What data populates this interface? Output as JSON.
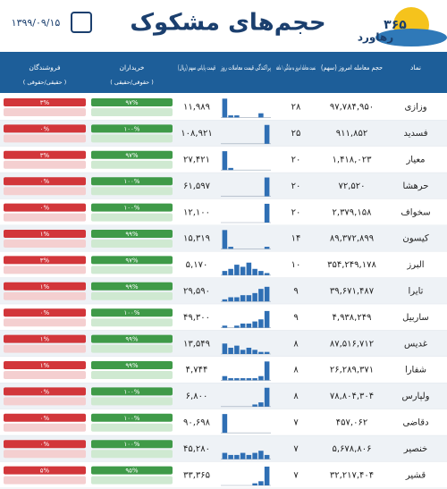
{
  "header": {
    "title": "حجم‌های مشکوک",
    "date": "۱۳۹۹/۰۹/۱۵",
    "logo_number": "۳۶۵",
    "logo_text": "رهاورد"
  },
  "table": {
    "columns": [
      "نماد",
      "حجم معامله امروز (سهم)",
      "نسبت معامله امروز به میانگین ۱ ماهه",
      "پراکندگی قیمت معاملات روز",
      "قیمت پایانی سهم (ریال)",
      "خریداران",
      "فروشندگان"
    ],
    "column_notes": {
      "buyers": "( حقوقی/حقیقی )",
      "sellers": "( حقیقی/حقوقی )"
    },
    "rows": [
      {
        "symbol": "وزازی",
        "volume": "۹۷,۷۸۴,۹۵۰",
        "ratio": "۲۸",
        "price": "۱۱,۹۸۹",
        "buyers": "۹۷%",
        "sellers": "۳%",
        "dist": [
          9,
          1,
          1,
          0,
          0,
          0,
          2,
          0
        ]
      },
      {
        "symbol": "فسدید",
        "volume": "۹۱۱,۸۵۲",
        "ratio": "۲۵",
        "price": "۱۰۸,۹۲۱",
        "buyers": "۱۰۰%",
        "sellers": "۰%",
        "dist": [
          0,
          0,
          0,
          0,
          0,
          0,
          0,
          9
        ]
      },
      {
        "symbol": "معیار",
        "volume": "۱,۴۱۸,۰۲۳",
        "ratio": "۲۰",
        "price": "۲۷,۴۲۱",
        "buyers": "۹۷%",
        "sellers": "۳%",
        "dist": [
          9,
          1,
          0,
          0,
          0,
          0,
          0,
          0
        ]
      },
      {
        "symbol": "حرهشا",
        "volume": "۷۲,۵۲۰",
        "ratio": "۲۰",
        "price": "۶۱,۵۹۷",
        "buyers": "۱۰۰%",
        "sellers": "۰%",
        "dist": [
          0,
          0,
          0,
          0,
          0,
          0,
          0,
          9
        ]
      },
      {
        "symbol": "سخواف",
        "volume": "۲,۳۷۹,۱۵۸",
        "ratio": "۲۰",
        "price": "۱۲,۱۰۰",
        "buyers": "۱۰۰%",
        "sellers": "۰%",
        "dist": [
          0,
          0,
          0,
          0,
          0,
          0,
          0,
          9
        ]
      },
      {
        "symbol": "کیسون",
        "volume": "۸۹,۳۷۲,۸۹۹",
        "ratio": "۱۴",
        "price": "۱۵,۳۱۹",
        "buyers": "۹۹%",
        "sellers": "۱%",
        "dist": [
          9,
          1,
          0,
          0,
          0,
          0,
          0,
          1
        ]
      },
      {
        "symbol": "البرز",
        "volume": "۳۵۴,۲۴۹,۱۷۸",
        "ratio": "۱۰",
        "price": "۵,۱۷۰",
        "buyers": "۹۷%",
        "sellers": "۳%",
        "dist": [
          2,
          3,
          5,
          4,
          6,
          3,
          2,
          1
        ]
      },
      {
        "symbol": "تایرا",
        "volume": "۳۹,۶۷۱,۴۸۷",
        "ratio": "۹",
        "price": "۲۹,۵۹۰",
        "buyers": "۹۹%",
        "sellers": "۱%",
        "dist": [
          1,
          2,
          2,
          3,
          3,
          4,
          6,
          7
        ]
      },
      {
        "symbol": "ساربیل",
        "volume": "۴,۹۳۸,۲۴۹",
        "ratio": "۹",
        "price": "۴۹,۳۰۰",
        "buyers": "۱۰۰%",
        "sellers": "۰%",
        "dist": [
          1,
          0,
          1,
          2,
          2,
          3,
          4,
          8
        ]
      },
      {
        "symbol": "غدیس",
        "volume": "۸۷,۵۱۶,۷۱۲",
        "ratio": "۸",
        "price": "۱۳,۵۴۹",
        "buyers": "۹۹%",
        "sellers": "۱%",
        "dist": [
          5,
          3,
          4,
          2,
          3,
          2,
          1,
          1
        ]
      },
      {
        "symbol": "شفارا",
        "volume": "۲۶,۲۸۹,۳۷۱",
        "ratio": "۸",
        "price": "۴,۷۴۴",
        "buyers": "۹۹%",
        "sellers": "۱%",
        "dist": [
          2,
          1,
          1,
          1,
          1,
          1,
          2,
          9
        ]
      },
      {
        "symbol": "ولپارس",
        "volume": "۷۸,۸۰۴,۳۰۴",
        "ratio": "۸",
        "price": "۶,۸۰۰",
        "buyers": "۱۰۰%",
        "sellers": "۰%",
        "dist": [
          0,
          0,
          0,
          0,
          0,
          1,
          2,
          9
        ]
      },
      {
        "symbol": "دقاضی",
        "volume": "۴۵۷,۰۶۲",
        "ratio": "۷",
        "price": "۹۰,۶۹۸",
        "buyers": "۱۰۰%",
        "sellers": "۰%",
        "dist": [
          9,
          0,
          0,
          0,
          0,
          0,
          0,
          0
        ]
      },
      {
        "symbol": "خنصیر",
        "volume": "۵,۶۷۸,۸۰۶",
        "ratio": "۷",
        "price": "۴۵,۲۸۰",
        "buyers": "۱۰۰%",
        "sellers": "۰%",
        "dist": [
          3,
          2,
          2,
          3,
          2,
          3,
          4,
          2
        ]
      },
      {
        "symbol": "قشیر",
        "volume": "۳۲,۲۱۷,۴۰۴",
        "ratio": "۷",
        "price": "۳۳,۳۶۵",
        "buyers": "۹۵%",
        "sellers": "۵%",
        "dist": [
          0,
          0,
          0,
          0,
          0,
          1,
          2,
          9
        ]
      }
    ]
  }
}
